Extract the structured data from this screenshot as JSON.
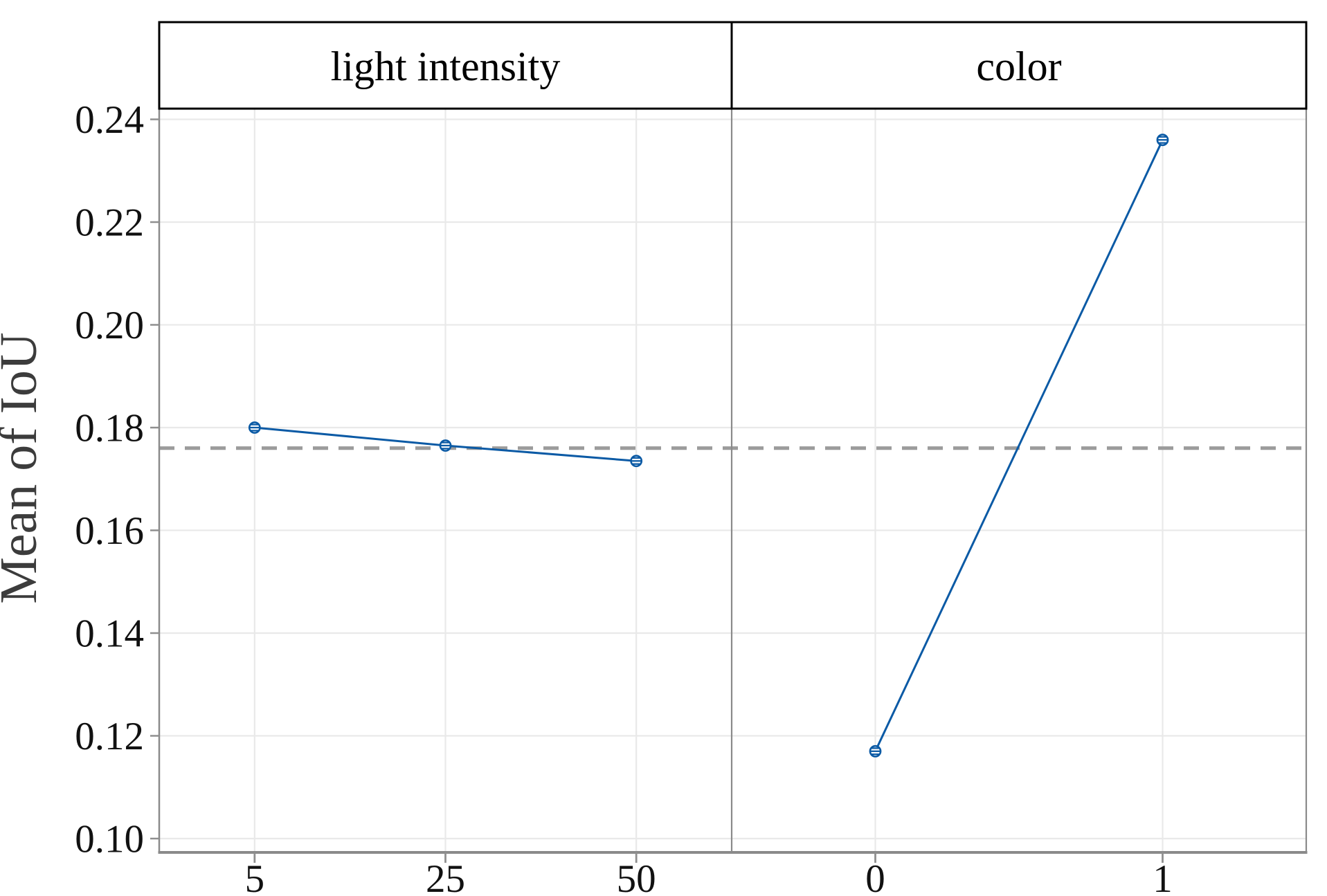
{
  "figure": {
    "kind": "main-effects-plot",
    "background": "#ffffff"
  },
  "chart_data": {
    "type": "line",
    "subtype": "main-effects-plot",
    "title": "",
    "xlabel": "",
    "ylabel": "Mean of IoU",
    "ylim": [
      0.1,
      0.24
    ],
    "ytick_values": [
      0.1,
      0.12,
      0.14,
      0.16,
      0.18,
      0.2,
      0.22,
      0.24
    ],
    "ytick_labels": [
      "0.10",
      "0.12",
      "0.14",
      "0.16",
      "0.18",
      "0.20",
      "0.22",
      "0.24"
    ],
    "grid": true,
    "legend_position": "none",
    "reference_line": {
      "value": 0.176,
      "style": "dashed"
    },
    "marker": "circle-with-interval-lines",
    "panels": [
      {
        "label": "light intensity",
        "categories": [
          "5",
          "25",
          "50"
        ],
        "values": [
          0.18,
          0.1765,
          0.1735
        ]
      },
      {
        "label": "color",
        "categories": [
          "0",
          "1"
        ],
        "values": [
          0.117,
          0.236
        ]
      }
    ]
  },
  "colors": {
    "series": "#0b5aa5",
    "marker_fill": "#ffffff",
    "reference": "#9c9c9c",
    "gridline": "#e9e9e9",
    "axis_line": "#8a8a8a",
    "panel_border": "#000000",
    "tick": "#8f8f8f",
    "tick_label": "#111111",
    "header_text": "#000000",
    "ylabel_text": "#3c3c3c",
    "background": "#ffffff"
  }
}
